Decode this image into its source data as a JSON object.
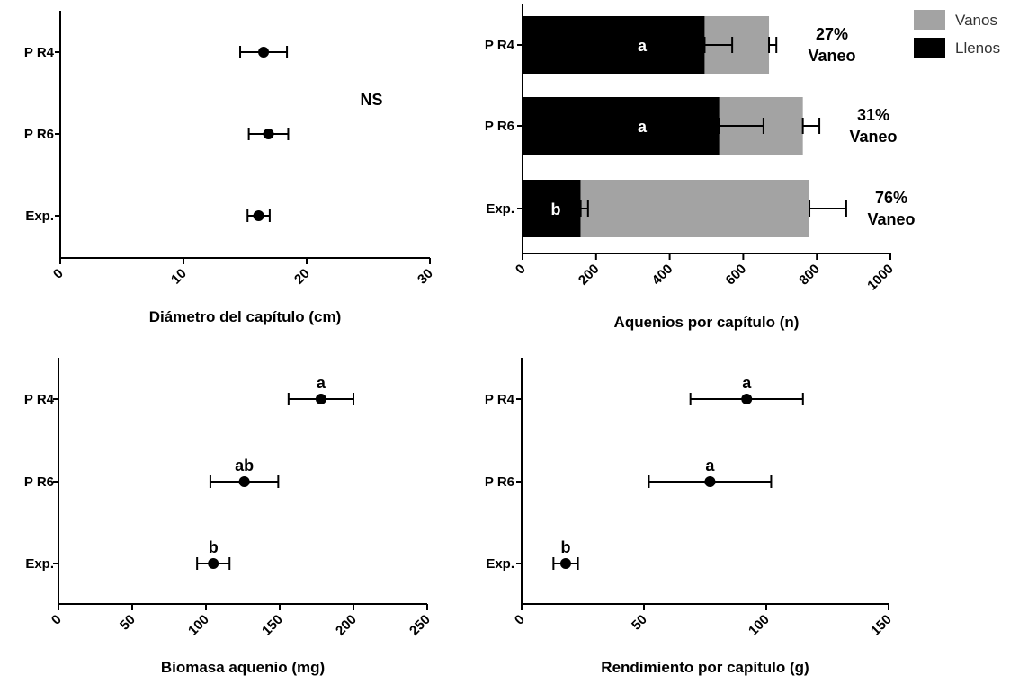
{
  "chart_data": [
    {
      "type": "scatter",
      "xlabel": "Diámetro del capítulo (cm)",
      "xlim": [
        0,
        30
      ],
      "xticks": [
        "0",
        "10",
        "20",
        "30"
      ],
      "categories": [
        "P R4",
        "P R6",
        "Exp."
      ],
      "values": [
        16.5,
        16.9,
        16.1
      ],
      "errors": [
        1.9,
        1.6,
        0.9
      ],
      "letters": [
        "",
        "",
        ""
      ],
      "annotation": "NS"
    },
    {
      "type": "bar",
      "stacked": true,
      "orientation": "horizontal",
      "xlabel": "Aquenios por capítulo (n)",
      "xlim": [
        0,
        1000
      ],
      "xticks": [
        "0",
        "200",
        "400",
        "600",
        "800",
        "1000"
      ],
      "categories": [
        "P R4",
        "P R6",
        "Exp."
      ],
      "series": [
        {
          "name": "Llenos",
          "color": "#000000",
          "values": [
            495,
            535,
            158
          ],
          "errors": [
            75,
            120,
            20
          ]
        },
        {
          "name": "Vanos",
          "color": "#a3a3a3",
          "values": [
            175,
            227,
            622
          ],
          "errors": [
            20,
            45,
            100
          ]
        }
      ],
      "letters": [
        "a",
        "a",
        "b"
      ],
      "vaneo_pct": [
        "27%",
        "31%",
        "76%"
      ],
      "vaneo_label": "Vaneo",
      "legend": {
        "position": "top-right",
        "items": [
          "Vanos",
          "Llenos"
        ]
      }
    },
    {
      "type": "scatter",
      "xlabel": "Biomasa aquenio (mg)",
      "xlim": [
        0,
        250
      ],
      "xticks": [
        "0",
        "50",
        "100",
        "150",
        "200",
        "250"
      ],
      "categories": [
        "P R4",
        "P R6",
        "Exp."
      ],
      "values": [
        178,
        126,
        105
      ],
      "errors": [
        22,
        23,
        11
      ],
      "letters": [
        "a",
        "ab",
        "b"
      ]
    },
    {
      "type": "scatter",
      "xlabel": "Rendimiento por capítulo (g)",
      "xlim": [
        0,
        150
      ],
      "xticks": [
        "0",
        "50",
        "100",
        "150"
      ],
      "categories": [
        "P R4",
        "P R6",
        "Exp."
      ],
      "values": [
        92,
        77,
        18
      ],
      "errors": [
        23,
        25,
        5
      ],
      "letters": [
        "a",
        "a",
        "b"
      ]
    }
  ]
}
